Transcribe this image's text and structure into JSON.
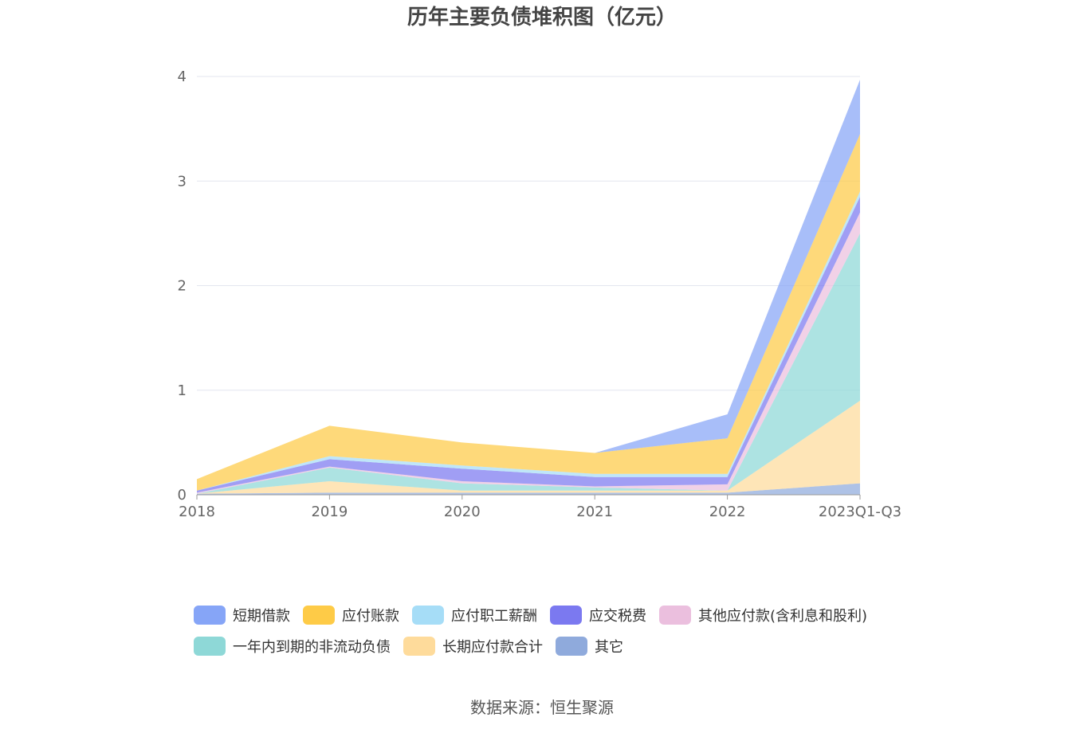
{
  "chart_data": {
    "type": "area",
    "stacked": true,
    "title": "历年主要负债堆积图（亿元）",
    "categories": [
      "2018",
      "2019",
      "2020",
      "2021",
      "2022",
      "2023Q1-Q3"
    ],
    "ylim": [
      0,
      4
    ],
    "yticks": [
      "0",
      "1",
      "2",
      "3",
      "4"
    ],
    "grid": true,
    "legend_position": "bottom",
    "series": [
      {
        "name": "其它",
        "color": "#8faadc",
        "values": [
          0.01,
          0.02,
          0.02,
          0.02,
          0.02,
          0.11
        ]
      },
      {
        "name": "长期应付款合计",
        "color": "#fedb9b",
        "values": [
          0.0,
          0.11,
          0.02,
          0.02,
          0.02,
          0.79
        ]
      },
      {
        "name": "一年内到期的非流动负债",
        "color": "#8ed8d7",
        "values": [
          0.0,
          0.13,
          0.07,
          0.03,
          0.0,
          1.6
        ]
      },
      {
        "name": "其他应付款(含利息和股利)",
        "color": "#ebbfde",
        "values": [
          0.01,
          0.01,
          0.02,
          0.01,
          0.06,
          0.2
        ]
      },
      {
        "name": "应交税费",
        "color": "#7b79f0",
        "values": [
          0.02,
          0.07,
          0.12,
          0.09,
          0.07,
          0.15
        ]
      },
      {
        "name": "应付职工薪酬",
        "color": "#a6ddf7",
        "values": [
          0.0,
          0.03,
          0.03,
          0.03,
          0.03,
          0.05
        ]
      },
      {
        "name": "应付账款",
        "color": "#fecb47",
        "values": [
          0.11,
          0.29,
          0.22,
          0.2,
          0.34,
          0.55
        ]
      },
      {
        "name": "短期借款",
        "color": "#86a5f7",
        "values": [
          0.0,
          0.0,
          0.0,
          0.0,
          0.23,
          0.52
        ]
      }
    ]
  },
  "legend_rows": [
    [
      "短期借款",
      "应付账款",
      "应付职工薪酬",
      "应交税费",
      "其他应付款(含利息和股利)"
    ],
    [
      "一年内到期的非流动负债",
      "长期应付款合计",
      "其它"
    ]
  ],
  "source_text": "数据来源：恒生聚源"
}
